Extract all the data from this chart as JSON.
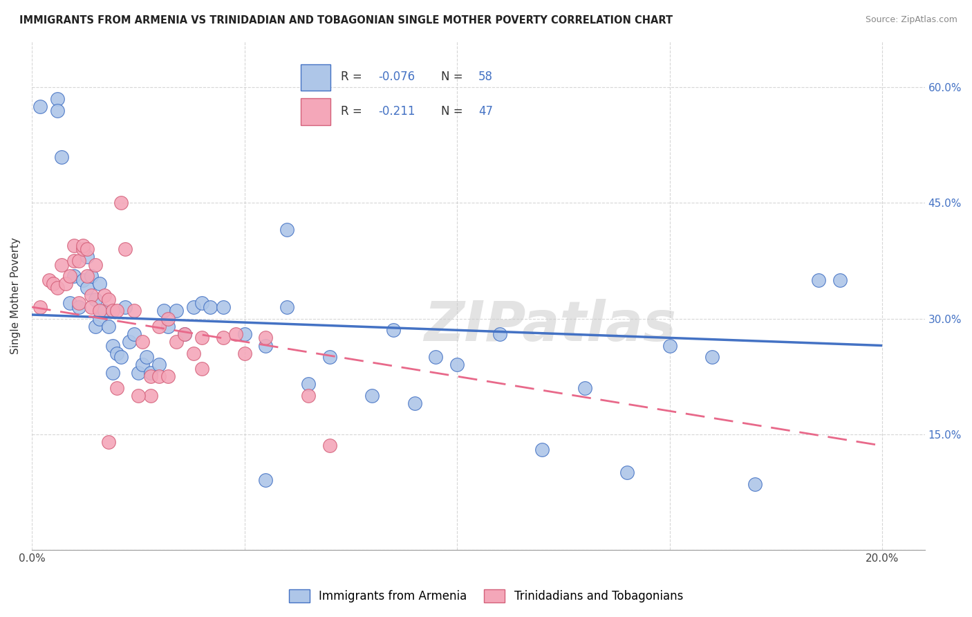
{
  "title": "IMMIGRANTS FROM ARMENIA VS TRINIDADIAN AND TOBAGONIAN SINGLE MOTHER POVERTY CORRELATION CHART",
  "source": "Source: ZipAtlas.com",
  "ylabel": "Single Mother Poverty",
  "legend_label1": "Immigrants from Armenia",
  "legend_label2": "Trinidadians and Tobagonians",
  "R1": -0.076,
  "N1": 58,
  "R2": -0.211,
  "N2": 47,
  "xlim": [
    0.0,
    0.21
  ],
  "ylim": [
    0.0,
    0.66
  ],
  "color_blue": "#aec6e8",
  "color_pink": "#f4a7b9",
  "line_blue": "#4472c4",
  "line_pink": "#e8698a",
  "watermark": "ZIPatlas",
  "blue_x": [
    0.002,
    0.006,
    0.006,
    0.007,
    0.009,
    0.01,
    0.011,
    0.012,
    0.013,
    0.013,
    0.014,
    0.015,
    0.015,
    0.016,
    0.016,
    0.017,
    0.018,
    0.019,
    0.019,
    0.02,
    0.021,
    0.022,
    0.023,
    0.024,
    0.025,
    0.026,
    0.027,
    0.028,
    0.03,
    0.031,
    0.032,
    0.034,
    0.036,
    0.038,
    0.04,
    0.042,
    0.045,
    0.05,
    0.055,
    0.06,
    0.065,
    0.07,
    0.08,
    0.085,
    0.09,
    0.095,
    0.1,
    0.11,
    0.12,
    0.13,
    0.14,
    0.15,
    0.16,
    0.17,
    0.185,
    0.06,
    0.055,
    0.19
  ],
  "blue_y": [
    0.575,
    0.585,
    0.57,
    0.51,
    0.32,
    0.355,
    0.315,
    0.35,
    0.38,
    0.34,
    0.355,
    0.29,
    0.325,
    0.345,
    0.3,
    0.31,
    0.29,
    0.23,
    0.265,
    0.255,
    0.25,
    0.315,
    0.27,
    0.28,
    0.23,
    0.24,
    0.25,
    0.23,
    0.24,
    0.31,
    0.29,
    0.31,
    0.28,
    0.315,
    0.32,
    0.315,
    0.315,
    0.28,
    0.265,
    0.315,
    0.215,
    0.25,
    0.2,
    0.285,
    0.19,
    0.25,
    0.24,
    0.28,
    0.13,
    0.21,
    0.1,
    0.265,
    0.25,
    0.085,
    0.35,
    0.415,
    0.09,
    0.35
  ],
  "pink_x": [
    0.002,
    0.004,
    0.005,
    0.006,
    0.007,
    0.008,
    0.009,
    0.01,
    0.01,
    0.011,
    0.011,
    0.012,
    0.012,
    0.013,
    0.013,
    0.014,
    0.014,
    0.015,
    0.016,
    0.017,
    0.018,
    0.019,
    0.02,
    0.021,
    0.022,
    0.024,
    0.026,
    0.028,
    0.03,
    0.032,
    0.034,
    0.036,
    0.038,
    0.04,
    0.045,
    0.048,
    0.05,
    0.055,
    0.065,
    0.07,
    0.028,
    0.02,
    0.025,
    0.018,
    0.04,
    0.03,
    0.032
  ],
  "pink_y": [
    0.315,
    0.35,
    0.345,
    0.34,
    0.37,
    0.345,
    0.355,
    0.395,
    0.375,
    0.375,
    0.32,
    0.39,
    0.395,
    0.39,
    0.355,
    0.33,
    0.315,
    0.37,
    0.31,
    0.33,
    0.325,
    0.31,
    0.31,
    0.45,
    0.39,
    0.31,
    0.27,
    0.225,
    0.29,
    0.3,
    0.27,
    0.28,
    0.255,
    0.275,
    0.275,
    0.28,
    0.255,
    0.275,
    0.2,
    0.135,
    0.2,
    0.21,
    0.2,
    0.14,
    0.235,
    0.225,
    0.225
  ]
}
